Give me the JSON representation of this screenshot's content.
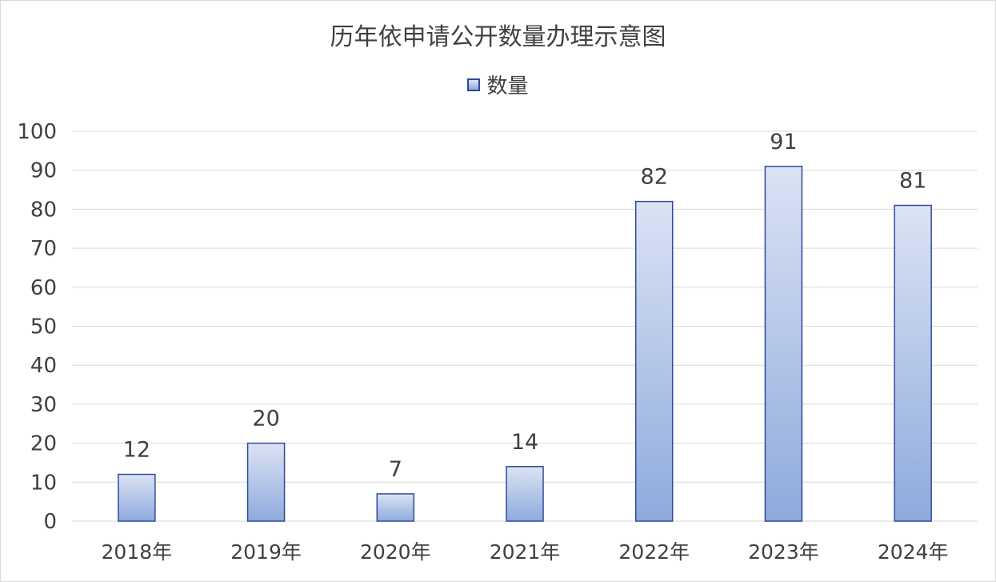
{
  "chart_data": {
    "type": "bar",
    "title": "历年依申请公开数量办理示意图",
    "categories": [
      "2018年",
      "2019年",
      "2020年",
      "2021年",
      "2022年",
      "2023年",
      "2024年"
    ],
    "series": [
      {
        "name": "数量",
        "values": [
          12,
          20,
          7,
          14,
          82,
          91,
          81
        ]
      }
    ],
    "data_labels": [
      "12",
      "20",
      "7",
      "14",
      "82",
      "91",
      "81"
    ],
    "ylim": [
      0,
      100
    ],
    "yticks": [
      0,
      10,
      20,
      30,
      40,
      50,
      60,
      70,
      80,
      90,
      100
    ],
    "ytick_labels": [
      "0",
      "10",
      "20",
      "30",
      "40",
      "50",
      "60",
      "70",
      "80",
      "90",
      "100"
    ],
    "xlabel": "",
    "ylabel": "",
    "grid": true,
    "legend_position": "top",
    "colors": {
      "bar_fill_top": "#dbe3f4",
      "bar_fill_bottom": "#8eaadc",
      "bar_border": "#2f4b9a",
      "grid": "#d9d9d9",
      "text": "#404040"
    }
  }
}
